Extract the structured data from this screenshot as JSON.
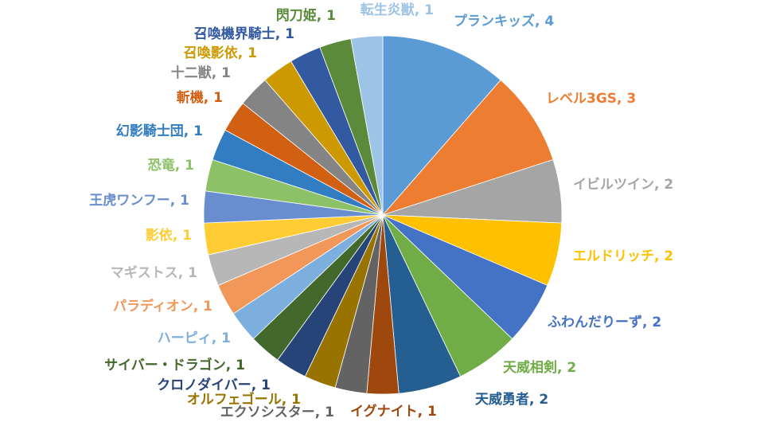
{
  "chart_data": {
    "type": "pie",
    "title": "",
    "legend": "none",
    "slices": [
      {
        "label": "プランキッズ",
        "value": 4,
        "display": "プランキッズ, 4",
        "color": "#5b9bd5"
      },
      {
        "label": "レベル3GS",
        "value": 3,
        "display": "レベル3GS, 3",
        "color": "#ed7d31"
      },
      {
        "label": "イビルツイン",
        "value": 2,
        "display": "イビルツイン, 2",
        "color": "#a5a5a5"
      },
      {
        "label": "エルドリッチ",
        "value": 2,
        "display": "エルドリッチ, 2",
        "color": "#ffc000"
      },
      {
        "label": "ふわんだりーず",
        "value": 2,
        "display": "ふわんだりーず, 2",
        "color": "#4472c4"
      },
      {
        "label": "天威相剣",
        "value": 2,
        "display": "天威相剣, 2",
        "color": "#70ad47"
      },
      {
        "label": "天威勇者",
        "value": 2,
        "display": "天威勇者, 2",
        "color": "#255e91"
      },
      {
        "label": "イグナイト",
        "value": 1,
        "display": "イグナイト, 1",
        "color": "#9e480e"
      },
      {
        "label": "エクソシスター",
        "value": 1,
        "display": "エクソシスター, 1",
        "color": "#636363"
      },
      {
        "label": "オルフェゴール",
        "value": 1,
        "display": "オルフェゴール, 1",
        "color": "#997300"
      },
      {
        "label": "クロノダイバー",
        "value": 1,
        "display": "クロノダイバー, 1",
        "color": "#264478"
      },
      {
        "label": "サイバー・ドラゴン",
        "value": 1,
        "display": "サイバー・ドラゴン, 1",
        "color": "#43682b"
      },
      {
        "label": "ハーピィ",
        "value": 1,
        "display": "ハーピィ, 1",
        "color": "#7cafdd"
      },
      {
        "label": "パラディオン",
        "value": 1,
        "display": "パラディオン, 1",
        "color": "#f1975a"
      },
      {
        "label": "マギストス",
        "value": 1,
        "display": "マギストス, 1",
        "color": "#b7b7b7"
      },
      {
        "label": "影依",
        "value": 1,
        "display": "影依, 1",
        "color": "#ffcd33"
      },
      {
        "label": "王虎ワンフー",
        "value": 1,
        "display": "王虎ワンフー, 1",
        "color": "#698ed0"
      },
      {
        "label": "恐竜",
        "value": 1,
        "display": "恐竜, 1",
        "color": "#8cc168"
      },
      {
        "label": "幻影騎士団",
        "value": 1,
        "display": "幻影騎士団, 1",
        "color": "#327dc2"
      },
      {
        "label": "斬機",
        "value": 1,
        "display": "斬機, 1",
        "color": "#d26012"
      },
      {
        "label": "十二獣",
        "value": 1,
        "display": "十二獣, 1",
        "color": "#848484"
      },
      {
        "label": "召喚影依",
        "value": 1,
        "display": "召喚影依, 1",
        "color": "#cc9a00"
      },
      {
        "label": "召喚機界騎士",
        "value": 1,
        "display": "召喚機界騎士, 1",
        "color": "#335aa1"
      },
      {
        "label": "閃刀姫",
        "value": 1,
        "display": "閃刀姫, 1",
        "color": "#5a8a3a"
      },
      {
        "label": "転生炎獣",
        "value": 1,
        "display": "転生炎獣, 1",
        "color": "#9dc3e6"
      }
    ]
  }
}
